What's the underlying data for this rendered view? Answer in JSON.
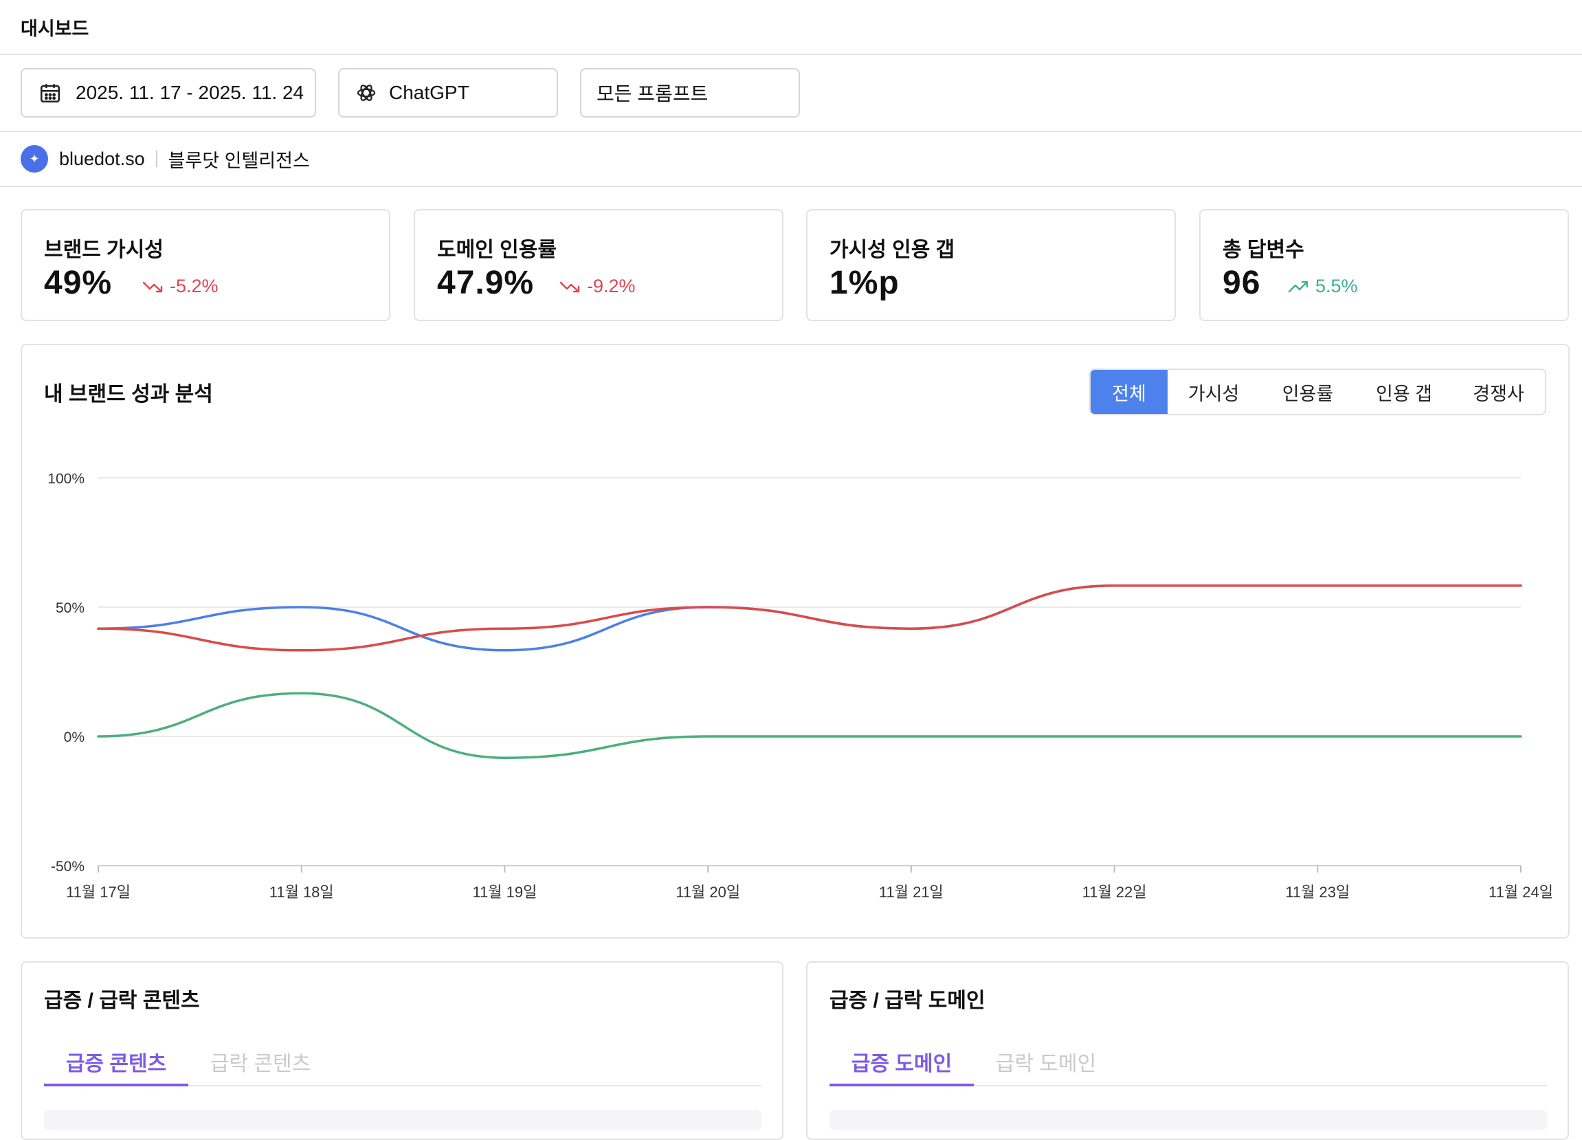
{
  "header": {
    "title": "대시보드"
  },
  "filters": {
    "date_range": "2025. 11. 17 - 2025. 11. 24",
    "model": "ChatGPT",
    "prompt": "모든 프롬프트"
  },
  "brand": {
    "domain": "bluedot.so",
    "name": "블루닷 인텔리전스"
  },
  "kpis": [
    {
      "title": "브랜드 가시성",
      "value": "49%",
      "delta": "-5.2%",
      "trend": "down"
    },
    {
      "title": "도메인 인용률",
      "value": "47.9%",
      "delta": "-9.2%",
      "trend": "down"
    },
    {
      "title": "가시성 인용 갭",
      "value": "1%p",
      "delta": "",
      "trend": ""
    },
    {
      "title": "총 답변수",
      "value": "96",
      "delta": "5.5%",
      "trend": "up"
    }
  ],
  "performance": {
    "title": "내 브랜드 성과 분석",
    "tabs": [
      "전체",
      "가시성",
      "인용률",
      "인용 갭",
      "경쟁사"
    ],
    "active_tab": "전체"
  },
  "chart_data": {
    "type": "line",
    "categories": [
      "11월 17일",
      "11월 18일",
      "11월 19일",
      "11월 20일",
      "11월 21일",
      "11월 22일",
      "11월 23일",
      "11월 24일"
    ],
    "yticks": [
      "100%",
      "50%",
      "0%",
      "-50%"
    ],
    "ylim": [
      -50,
      100
    ],
    "grid": true,
    "series": [
      {
        "color": "#4d7fe6",
        "values": [
          41.7,
          50,
          33.3,
          50,
          41.7,
          58.3,
          58.3,
          58.3
        ]
      },
      {
        "color": "#d94b4b",
        "values": [
          41.7,
          33.3,
          41.7,
          50,
          41.7,
          58.3,
          58.3,
          58.3
        ]
      },
      {
        "color": "#4caf7d",
        "values": [
          0,
          16.7,
          -8.3,
          0,
          0,
          0,
          0,
          0
        ]
      }
    ]
  },
  "content_panel": {
    "title": "급증 / 급락 콘텐츠",
    "tab_rise": "급증 콘텐츠",
    "tab_fall": "급락 콘텐츠"
  },
  "domain_panel": {
    "title": "급증 / 급락 도메인",
    "tab_rise": "급증 도메인",
    "tab_fall": "급락 도메인"
  },
  "colors": {
    "accent": "#4d82ec",
    "tab_active": "#7c5ce6",
    "down": "#e0444f",
    "up": "#3bb08f"
  }
}
